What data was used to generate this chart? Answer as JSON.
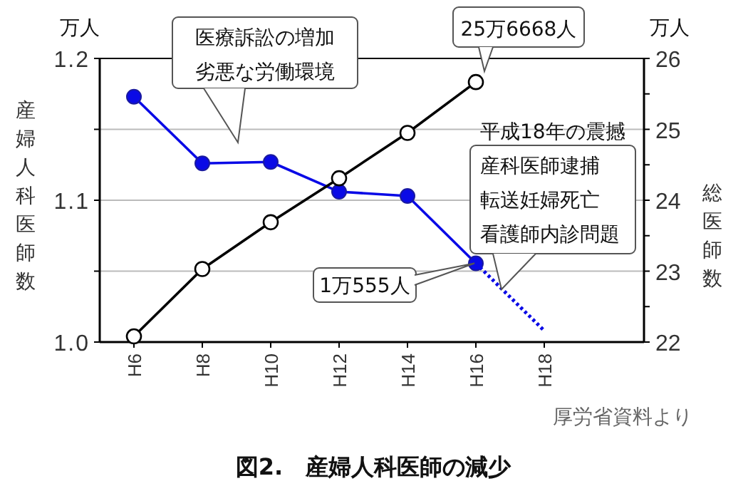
{
  "chart_data": {
    "type": "line",
    "title": "図2.　産婦人科医師の減少",
    "ylabel": "産婦人科医師数",
    "y2label": "総医師数",
    "annotations": [
      "万人",
      "万人",
      "医療訴訟の増加劣悪な労働環境",
      "25万6668人",
      "平成18年の震撼",
      "産科医師逮捕転送妊婦死亡看護師内診問題",
      {
        "text": "1万555人",
        "x": "H16",
        "y": 1.0555
      },
      "厚労省資料より"
    ],
    "categories": [
      "H6",
      "H8",
      "H10",
      "H12",
      "H14",
      "H16",
      "H18"
    ],
    "ylim": [
      1.0,
      1.2
    ],
    "yticks": [
      {
        "value": 1.0,
        "label": "1.0"
      },
      {
        "value": 1.05,
        "label": null
      },
      {
        "value": 1.1,
        "label": "1.1"
      },
      {
        "value": 1.15,
        "label": null
      },
      {
        "value": 1.2,
        "label": "1.2"
      }
    ],
    "y2lim": [
      22,
      26
    ],
    "y2ticks": [
      22,
      {
        "value": 22.5,
        "label": null
      },
      23,
      {
        "value": 23.5,
        "label": null
      },
      24,
      {
        "value": 24.5,
        "label": null
      },
      25,
      {
        "value": 25.5,
        "label": null
      },
      26
    ],
    "grid": "y",
    "series": [
      {
        "color": "#0a0ae6",
        "marker": "circle",
        "line_style": "solid",
        "values": [
          1.173,
          1.126,
          1.127,
          1.106,
          1.103,
          1.0555,
          null
        ]
      },
      {
        "color": "#0a0ae6",
        "marker": "none",
        "line_style": "dotted",
        "values": [
          null,
          null,
          null,
          null,
          null,
          1.0555,
          1.008
        ]
      },
      {
        "color": "#000000",
        "marker": "circle",
        "line_style": "solid",
        "axis": "y2",
        "values": [
          22.08,
          23.03,
          23.69,
          24.31,
          24.95,
          25.6668,
          null
        ]
      }
    ]
  }
}
